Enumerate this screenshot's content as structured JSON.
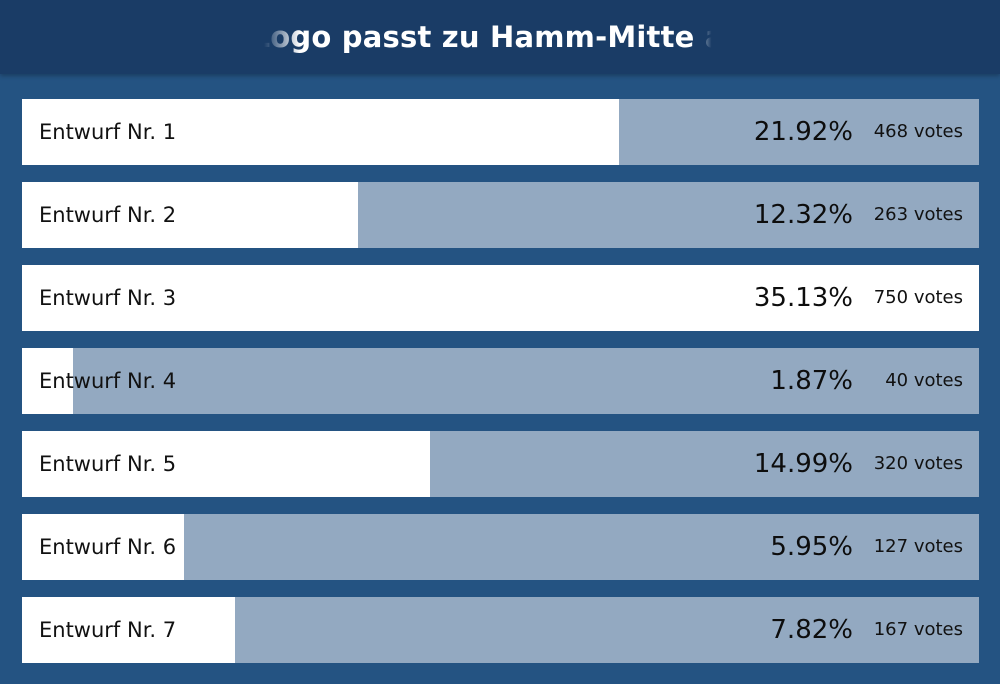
{
  "header": {
    "title": "Welches Logo passt zu Hamm-Mitte am besten?"
  },
  "colors": {
    "background": "#245382",
    "header": "#1a3c66",
    "bar_track": "#93a9c1",
    "bar_fill": "#ffffff"
  },
  "chart_data": {
    "type": "bar",
    "orientation": "horizontal",
    "title": "Welches Logo passt zu Hamm-Mitte am besten?",
    "categories": [
      "Entwurf Nr. 1",
      "Entwurf Nr. 2",
      "Entwurf Nr. 3",
      "Entwurf Nr. 4",
      "Entwurf Nr. 5",
      "Entwurf Nr. 6",
      "Entwurf Nr. 7"
    ],
    "percent_labels": [
      "21.92%",
      "12.32%",
      "35.13%",
      "1.87%",
      "14.99%",
      "5.95%",
      "7.82%"
    ],
    "percent_values": [
      21.92,
      12.32,
      35.13,
      1.87,
      14.99,
      5.95,
      7.82
    ],
    "vote_labels": [
      "468 votes",
      "263 votes",
      "750 votes",
      "40 votes",
      "320 votes",
      "127 votes",
      "167 votes"
    ],
    "votes": [
      468,
      263,
      750,
      40,
      320,
      127,
      167
    ]
  }
}
